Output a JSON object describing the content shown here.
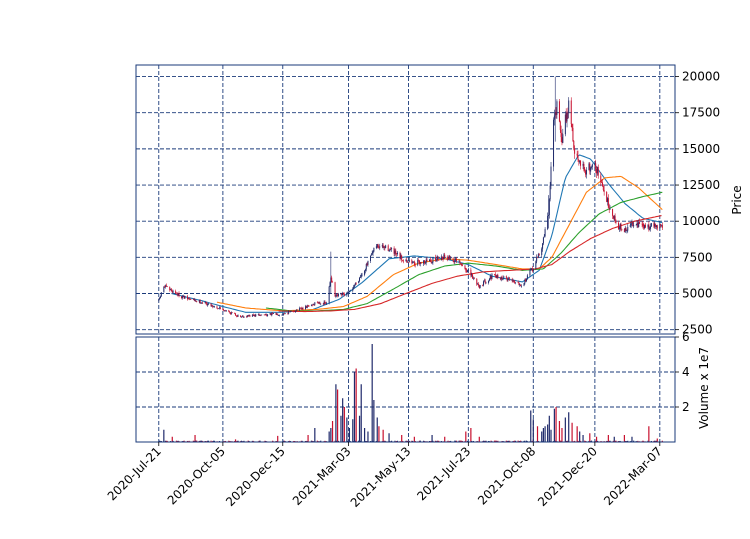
{
  "chart_data": {
    "type": "candlestick",
    "price_axis": {
      "label": "Price",
      "ylim": [
        2200,
        20800
      ],
      "ticks": [
        2500,
        5000,
        7500,
        10000,
        12500,
        15000,
        17500,
        20000
      ],
      "tick_labels": [
        "2500",
        "5000",
        "7500",
        "10000",
        "12500",
        "15000",
        "17500",
        "20000"
      ]
    },
    "volume_axis": {
      "label": "Volume x 1e7",
      "ylim": [
        0,
        6.0
      ],
      "ticks": [
        2,
        4,
        6
      ],
      "tick_labels": [
        "2",
        "4",
        "6"
      ]
    },
    "x_axis": {
      "range": [
        "2020-06-24",
        "2022-03-25"
      ],
      "ticks": [
        "2020-07-21",
        "2020-10-05",
        "2020-12-15",
        "2021-03-03",
        "2021-05-13",
        "2021-07-23",
        "2021-10-08",
        "2021-12-20",
        "2022-03-07"
      ],
      "tick_labels": [
        "2020-Jul-21",
        "2020-Oct-05",
        "2020-Dec-15",
        "2021-Mar-03",
        "2021-May-13",
        "2021-Jul-23",
        "2021-Oct-08",
        "2021-Dec-20",
        "2022-Mar-07"
      ]
    },
    "grid": true,
    "price_anchors": [
      [
        "2020-07-21",
        4500
      ],
      [
        "2020-07-27",
        5500
      ],
      [
        "2020-08-05",
        5200
      ],
      [
        "2020-08-20",
        4700
      ],
      [
        "2020-09-10",
        4400
      ],
      [
        "2020-10-05",
        3900
      ],
      [
        "2020-10-25",
        3400
      ],
      [
        "2020-11-15",
        3500
      ],
      [
        "2020-12-15",
        3600
      ],
      [
        "2021-01-10",
        4000
      ],
      [
        "2021-01-25",
        4400
      ],
      [
        "2021-02-05",
        4300
      ],
      [
        "2021-02-10",
        6200
      ],
      [
        "2021-02-15",
        4800
      ],
      [
        "2021-03-03",
        5000
      ],
      [
        "2021-03-15",
        6000
      ],
      [
        "2021-03-25",
        7000
      ],
      [
        "2021-04-05",
        8300
      ],
      [
        "2021-04-20",
        8100
      ],
      [
        "2021-05-05",
        7400
      ],
      [
        "2021-05-20",
        7100
      ],
      [
        "2021-06-10",
        7300
      ],
      [
        "2021-06-25",
        7600
      ],
      [
        "2021-07-10",
        7200
      ],
      [
        "2021-07-23",
        6500
      ],
      [
        "2021-08-05",
        5500
      ],
      [
        "2021-08-20",
        6200
      ],
      [
        "2021-09-10",
        6000
      ],
      [
        "2021-09-25",
        5600
      ],
      [
        "2021-10-08",
        6800
      ],
      [
        "2021-10-18",
        8200
      ],
      [
        "2021-10-26",
        10500
      ],
      [
        "2021-11-01",
        17000
      ],
      [
        "2021-11-05",
        18000
      ],
      [
        "2021-11-10",
        15500
      ],
      [
        "2021-11-15",
        17000
      ],
      [
        "2021-11-20",
        18500
      ],
      [
        "2021-11-25",
        15000
      ],
      [
        "2021-12-01",
        14000
      ],
      [
        "2021-12-10",
        13500
      ],
      [
        "2021-12-20",
        14000
      ],
      [
        "2021-12-28",
        12500
      ],
      [
        "2022-01-05",
        11200
      ],
      [
        "2022-01-15",
        9800
      ],
      [
        "2022-01-25",
        9300
      ],
      [
        "2022-02-05",
        10000
      ],
      [
        "2022-02-15",
        9600
      ],
      [
        "2022-03-01",
        9700
      ],
      [
        "2022-03-07",
        9600
      ],
      [
        "2022-03-10",
        9700
      ]
    ],
    "spikes": [
      {
        "date": "2021-02-10",
        "high": 7900,
        "low": 5000
      },
      {
        "date": "2021-11-03",
        "high": 20000,
        "low": 15500
      },
      {
        "date": "2021-11-21",
        "high": 19700,
        "low": 15300
      },
      {
        "date": "2021-10-26",
        "high": 11800,
        "low": 9500
      }
    ],
    "ma_series": [
      {
        "color": "#1f77b4",
        "start": "2020-08-05",
        "points": [
          [
            "2020-08-05",
            5000
          ],
          [
            "2020-09-10",
            4500
          ],
          [
            "2020-10-05",
            4100
          ],
          [
            "2020-11-01",
            3700
          ],
          [
            "2020-12-15",
            3700
          ],
          [
            "2021-01-20",
            3900
          ],
          [
            "2021-02-20",
            4600
          ],
          [
            "2021-03-20",
            5800
          ],
          [
            "2021-04-20",
            7400
          ],
          [
            "2021-05-20",
            7600
          ],
          [
            "2021-06-25",
            7400
          ],
          [
            "2021-07-23",
            7000
          ],
          [
            "2021-08-20",
            6200
          ],
          [
            "2021-09-25",
            5800
          ],
          [
            "2021-10-15",
            6600
          ],
          [
            "2021-10-30",
            9000
          ],
          [
            "2021-11-15",
            13000
          ],
          [
            "2021-12-01",
            14600
          ],
          [
            "2021-12-15",
            14300
          ],
          [
            "2022-01-05",
            12600
          ],
          [
            "2022-01-25",
            11200
          ],
          [
            "2022-02-15",
            10200
          ],
          [
            "2022-03-10",
            9900
          ]
        ]
      },
      {
        "color": "#ff7f0e",
        "start": "2020-09-28",
        "points": [
          [
            "2020-09-28",
            4400
          ],
          [
            "2020-11-01",
            4000
          ],
          [
            "2020-12-15",
            3800
          ],
          [
            "2021-01-25",
            3900
          ],
          [
            "2021-02-25",
            4100
          ],
          [
            "2021-03-25",
            4800
          ],
          [
            "2021-04-25",
            6300
          ],
          [
            "2021-05-25",
            7100
          ],
          [
            "2021-06-25",
            7400
          ],
          [
            "2021-07-23",
            7300
          ],
          [
            "2021-08-25",
            7000
          ],
          [
            "2021-09-25",
            6700
          ],
          [
            "2021-10-15",
            6700
          ],
          [
            "2021-10-30",
            7500
          ],
          [
            "2021-11-20",
            9800
          ],
          [
            "2021-12-10",
            12000
          ],
          [
            "2022-01-01",
            13000
          ],
          [
            "2022-01-20",
            13100
          ],
          [
            "2022-02-10",
            12300
          ],
          [
            "2022-03-10",
            10800
          ]
        ]
      },
      {
        "color": "#2ca02c",
        "start": "2020-11-25",
        "points": [
          [
            "2020-11-25",
            4000
          ],
          [
            "2020-12-25",
            3800
          ],
          [
            "2021-01-25",
            3800
          ],
          [
            "2021-02-25",
            3900
          ],
          [
            "2021-03-25",
            4300
          ],
          [
            "2021-04-25",
            5300
          ],
          [
            "2021-05-25",
            6300
          ],
          [
            "2021-06-25",
            6900
          ],
          [
            "2021-07-23",
            7100
          ],
          [
            "2021-08-25",
            6900
          ],
          [
            "2021-09-25",
            6600
          ],
          [
            "2021-10-20",
            6700
          ],
          [
            "2021-11-10",
            7800
          ],
          [
            "2021-12-01",
            9200
          ],
          [
            "2021-12-25",
            10500
          ],
          [
            "2022-01-20",
            11300
          ],
          [
            "2022-02-15",
            11700
          ],
          [
            "2022-03-10",
            12000
          ]
        ]
      },
      {
        "color": "#d62728",
        "start": "2020-12-10",
        "points": [
          [
            "2020-12-10",
            3800
          ],
          [
            "2021-01-10",
            3750
          ],
          [
            "2021-02-10",
            3800
          ],
          [
            "2021-03-10",
            3900
          ],
          [
            "2021-04-10",
            4300
          ],
          [
            "2021-05-10",
            5000
          ],
          [
            "2021-06-10",
            5700
          ],
          [
            "2021-07-10",
            6200
          ],
          [
            "2021-08-10",
            6500
          ],
          [
            "2021-09-10",
            6600
          ],
          [
            "2021-10-10",
            6700
          ],
          [
            "2021-10-30",
            7000
          ],
          [
            "2021-11-20",
            7900
          ],
          [
            "2021-12-15",
            8800
          ],
          [
            "2022-01-10",
            9500
          ],
          [
            "2022-02-05",
            10000
          ],
          [
            "2022-03-10",
            10400
          ]
        ]
      }
    ],
    "volume_base": 0.05,
    "volume_spikes": [
      {
        "date": "2020-07-27",
        "value": 0.7
      },
      {
        "date": "2020-08-06",
        "value": 0.3
      },
      {
        "date": "2020-09-02",
        "value": 0.4
      },
      {
        "date": "2020-10-20",
        "value": 0.15
      },
      {
        "date": "2020-12-09",
        "value": 0.35
      },
      {
        "date": "2021-01-14",
        "value": 0.4
      },
      {
        "date": "2021-01-22",
        "value": 0.8
      },
      {
        "date": "2021-02-08",
        "value": 0.6
      },
      {
        "date": "2021-02-10",
        "value": 0.8
      },
      {
        "date": "2021-02-12",
        "value": 1.2
      },
      {
        "date": "2021-02-16",
        "value": 3.3
      },
      {
        "date": "2021-02-18",
        "value": 3.0
      },
      {
        "date": "2021-02-22",
        "value": 1.5
      },
      {
        "date": "2021-02-24",
        "value": 2.5
      },
      {
        "date": "2021-02-26",
        "value": 2.0
      },
      {
        "date": "2021-03-01",
        "value": 1.4
      },
      {
        "date": "2021-03-04",
        "value": 0.8
      },
      {
        "date": "2021-03-08",
        "value": 1.3
      },
      {
        "date": "2021-03-10",
        "value": 4.0
      },
      {
        "date": "2021-03-12",
        "value": 4.2
      },
      {
        "date": "2021-03-16",
        "value": 1.5
      },
      {
        "date": "2021-03-18",
        "value": 3.3
      },
      {
        "date": "2021-03-22",
        "value": 0.8
      },
      {
        "date": "2021-03-26",
        "value": 0.6
      },
      {
        "date": "2021-03-31",
        "value": 5.6
      },
      {
        "date": "2021-04-02",
        "value": 2.4
      },
      {
        "date": "2021-04-06",
        "value": 1.4
      },
      {
        "date": "2021-04-08",
        "value": 0.9
      },
      {
        "date": "2021-04-13",
        "value": 0.7
      },
      {
        "date": "2021-04-20",
        "value": 0.5
      },
      {
        "date": "2021-05-05",
        "value": 0.4
      },
      {
        "date": "2021-05-20",
        "value": 0.3
      },
      {
        "date": "2021-06-10",
        "value": 0.4
      },
      {
        "date": "2021-06-25",
        "value": 0.3
      },
      {
        "date": "2021-07-20",
        "value": 0.6
      },
      {
        "date": "2021-07-26",
        "value": 0.8
      },
      {
        "date": "2021-08-05",
        "value": 0.3
      },
      {
        "date": "2021-10-05",
        "value": 1.8
      },
      {
        "date": "2021-10-08",
        "value": 1.3
      },
      {
        "date": "2021-10-13",
        "value": 0.9
      },
      {
        "date": "2021-10-18",
        "value": 0.6
      },
      {
        "date": "2021-10-20",
        "value": 0.8
      },
      {
        "date": "2021-10-22",
        "value": 0.9
      },
      {
        "date": "2021-10-25",
        "value": 1.0
      },
      {
        "date": "2021-10-27",
        "value": 1.5
      },
      {
        "date": "2021-10-29",
        "value": 0.7
      },
      {
        "date": "2021-11-02",
        "value": 1.9
      },
      {
        "date": "2021-11-04",
        "value": 2.0
      },
      {
        "date": "2021-11-08",
        "value": 1.2
      },
      {
        "date": "2021-11-11",
        "value": 0.8
      },
      {
        "date": "2021-11-15",
        "value": 1.4
      },
      {
        "date": "2021-11-19",
        "value": 1.7
      },
      {
        "date": "2021-11-23",
        "value": 1.1
      },
      {
        "date": "2021-11-29",
        "value": 0.9
      },
      {
        "date": "2021-12-02",
        "value": 0.6
      },
      {
        "date": "2021-12-06",
        "value": 0.4
      },
      {
        "date": "2021-12-14",
        "value": 0.5
      },
      {
        "date": "2021-12-22",
        "value": 0.3
      },
      {
        "date": "2022-01-05",
        "value": 0.4
      },
      {
        "date": "2022-01-12",
        "value": 0.3
      },
      {
        "date": "2022-01-24",
        "value": 0.4
      },
      {
        "date": "2022-02-02",
        "value": 0.3
      },
      {
        "date": "2022-02-22",
        "value": 0.9
      },
      {
        "date": "2022-03-04",
        "value": 0.2
      }
    ]
  }
}
